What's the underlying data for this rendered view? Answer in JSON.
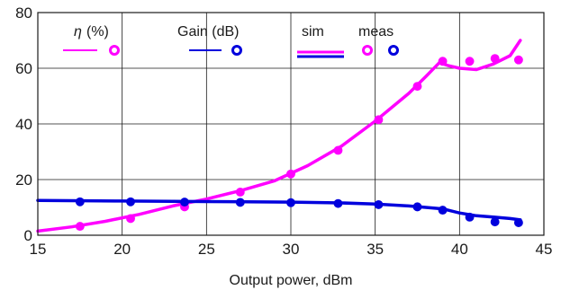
{
  "chart_data": {
    "type": "line",
    "xlabel": "Output power, dBm",
    "ylabel": "",
    "xlim": [
      15,
      45
    ],
    "ylim": [
      0,
      80
    ],
    "x_ticks": [
      "15",
      "20",
      "25",
      "30",
      "35",
      "40",
      "45"
    ],
    "y_ticks": [
      "0",
      "20",
      "40",
      "60",
      "80"
    ],
    "grid": true,
    "legend_position": "top",
    "legend": {
      "eta_symbol": "η",
      "eta_unit": "(%)",
      "gain_label": "Gain (dB)",
      "sim_label": "sim",
      "meas_label": "meas"
    },
    "colors": {
      "eta": "#ff00ff",
      "gain": "#0000dd"
    },
    "series": [
      {
        "name": "η (%) sim",
        "style": "line",
        "color": "#ff00ff",
        "x": [
          15,
          17,
          19,
          21,
          23,
          25,
          27,
          29,
          31,
          33,
          35,
          37,
          38,
          38.8,
          39.3,
          40,
          41,
          42,
          43,
          43.6
        ],
        "y": [
          1.5,
          3,
          5,
          7.5,
          10.5,
          13,
          16,
          19.5,
          25,
          32,
          41,
          51,
          57,
          62,
          61,
          60,
          59.5,
          61.5,
          64.5,
          70
        ]
      },
      {
        "name": "Gain (dB) sim",
        "style": "line",
        "color": "#0000dd",
        "x": [
          15,
          20,
          25,
          30,
          33,
          35,
          37,
          39,
          40,
          41,
          42,
          43,
          43.6
        ],
        "y": [
          12.5,
          12.3,
          12.1,
          11.9,
          11.6,
          11.2,
          10.5,
          9.5,
          8,
          7,
          6.5,
          6,
          5.5
        ]
      },
      {
        "name": "η (%) meas",
        "style": "markers",
        "color": "#ff00ff",
        "x": [
          17.5,
          20.5,
          23.7,
          27,
          30,
          32.8,
          35.2,
          37.5,
          39,
          40.6,
          42.1,
          43.5
        ],
        "y": [
          3.2,
          6,
          10.2,
          15.5,
          22,
          30.5,
          41.5,
          53.5,
          62.5,
          62.5,
          63.5,
          63
        ]
      },
      {
        "name": "Gain (dB) meas",
        "style": "markers",
        "color": "#0000dd",
        "x": [
          17.5,
          20.5,
          23.7,
          27,
          30,
          32.8,
          35.2,
          37.5,
          39,
          40.6,
          42.1,
          43.5
        ],
        "y": [
          12,
          12,
          11.9,
          11.8,
          11.7,
          11.4,
          11,
          10.2,
          9,
          6.5,
          4.8,
          4.5
        ]
      }
    ]
  }
}
